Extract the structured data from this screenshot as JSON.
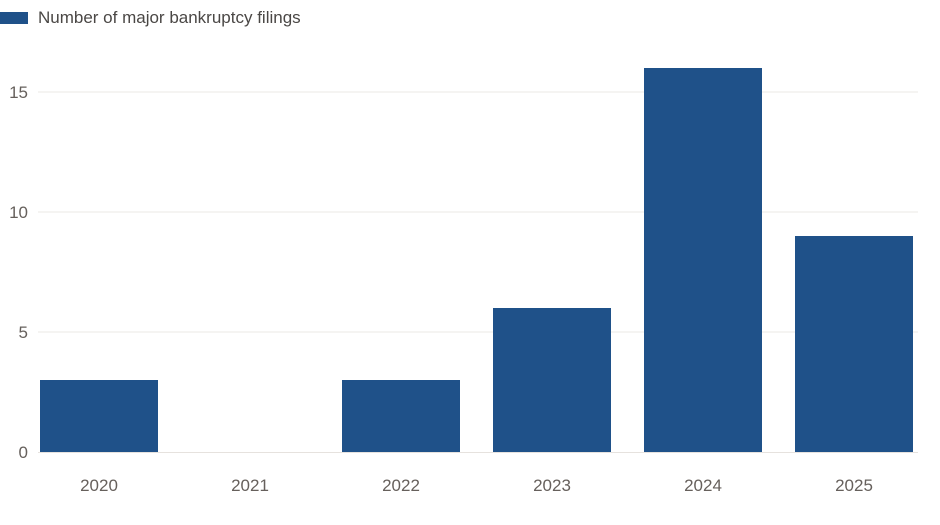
{
  "chart_data": {
    "type": "bar",
    "categories": [
      "2020",
      "2021",
      "2022",
      "2023",
      "2024",
      "2025"
    ],
    "series": [
      {
        "name": "Number of major bankruptcy filings",
        "values": [
          3,
          0,
          3,
          6,
          16,
          9
        ],
        "color": "#1f5189"
      }
    ],
    "ylim": [
      0,
      17
    ],
    "yticks": [
      0,
      5,
      10,
      15
    ],
    "grid": true,
    "legend_position": "top-left",
    "title": "",
    "xlabel": "",
    "ylabel": ""
  }
}
